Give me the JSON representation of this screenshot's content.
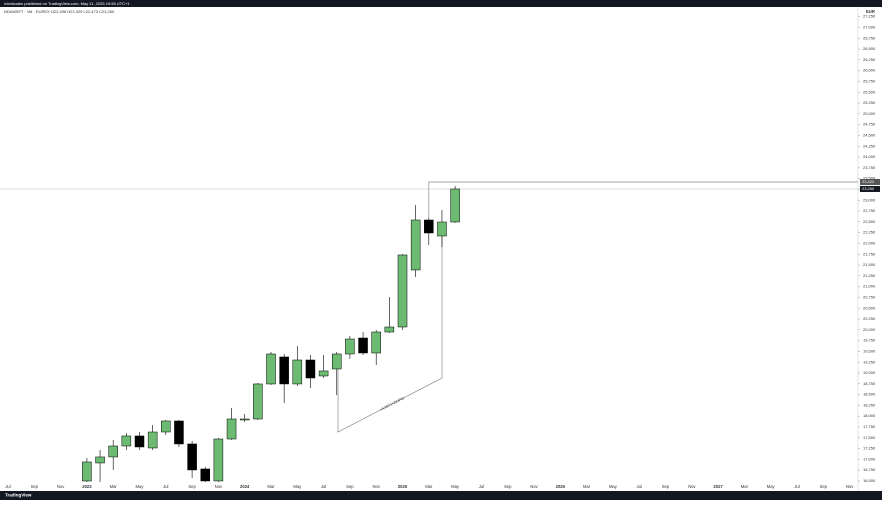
{
  "header": {
    "published": "lchristodes published on TradingView.com, May 11, 2025 19:55 UTC+1",
    "symbol_line": "NDAMSFT · 1M · EUREX   O22,496  H23,329  L22,473  C23,260"
  },
  "chart_data": {
    "type": "candlestick",
    "currency": "EUR",
    "up_color": "#6dbb72",
    "down_color": "#000000",
    "open": [
      16500,
      16917,
      17056,
      17310,
      17542,
      17264,
      17634,
      17889,
      17357,
      16778,
      16500,
      17472,
      17912,
      17935,
      18746,
      19371,
      18746,
      19301,
      18931,
      19093,
      19440,
      19810,
      19463,
      19949,
      20065,
      21385,
      22542,
      22172,
      22496
    ],
    "high": [
      17032,
      17218,
      17449,
      17611,
      17634,
      17796,
      17912,
      17912,
      17426,
      16824,
      17495,
      18190,
      18051,
      18769,
      19486,
      19440,
      19625,
      19417,
      19417,
      19486,
      19857,
      19949,
      19995,
      20760,
      21755,
      22889,
      22588,
      22774,
      23329
    ],
    "low": [
      16477,
      16477,
      16755,
      17218,
      17218,
      17218,
      17565,
      17287,
      16569,
      16477,
      16477,
      17449,
      17866,
      17912,
      18722,
      18306,
      18699,
      18653,
      18884,
      18491,
      19324,
      19417,
      19185,
      19926,
      19995,
      21223,
      21963,
      21917,
      22473
    ],
    "close": [
      16940,
      17056,
      17310,
      17542,
      17287,
      17634,
      17889,
      17357,
      16755,
      16500,
      17472,
      17935,
      17935,
      18746,
      19440,
      18746,
      19301,
      18884,
      19047,
      19440,
      19787,
      19463,
      19949,
      20065,
      21732,
      22542,
      22241,
      22496,
      23260
    ],
    "ylim": [
      16430,
      27450
    ],
    "yticks": [
      {
        "value": 16500,
        "label": "16,500"
      },
      {
        "value": 16750,
        "label": "16,750"
      },
      {
        "value": 17000,
        "label": "17,000"
      },
      {
        "value": 17250,
        "label": "17,250"
      },
      {
        "value": 17500,
        "label": "17,500"
      },
      {
        "value": 17750,
        "label": "17,750"
      },
      {
        "value": 18000,
        "label": "18,000"
      },
      {
        "value": 18250,
        "label": "18,250"
      },
      {
        "value": 18500,
        "label": "18,500"
      },
      {
        "value": 18750,
        "label": "18,750"
      },
      {
        "value": 19000,
        "label": "19,000"
      },
      {
        "value": 19250,
        "label": "19,250"
      },
      {
        "value": 19500,
        "label": "19,500"
      },
      {
        "value": 19750,
        "label": "19,750"
      },
      {
        "value": 20000,
        "label": "20,000"
      },
      {
        "value": 20250,
        "label": "20,250"
      },
      {
        "value": 20500,
        "label": "20,500"
      },
      {
        "value": 20750,
        "label": "20,750"
      },
      {
        "value": 21000,
        "label": "21,000"
      },
      {
        "value": 21250,
        "label": "21,250"
      },
      {
        "value": 21500,
        "label": "21,500"
      },
      {
        "value": 21750,
        "label": "21,750"
      },
      {
        "value": 22000,
        "label": "22,000"
      },
      {
        "value": 22250,
        "label": "22,250"
      },
      {
        "value": 22500,
        "label": "22,500"
      },
      {
        "value": 22750,
        "label": "22,750"
      },
      {
        "value": 23000,
        "label": "23,000"
      },
      {
        "value": 23250,
        "label": "23,250"
      },
      {
        "value": 23500,
        "label": "23,500"
      },
      {
        "value": 23750,
        "label": "23,750"
      },
      {
        "value": 24000,
        "label": "24,000"
      },
      {
        "value": 24250,
        "label": "24,250"
      },
      {
        "value": 24500,
        "label": "24,500"
      },
      {
        "value": 24750,
        "label": "24,750"
      },
      {
        "value": 25000,
        "label": "25,000"
      },
      {
        "value": 25250,
        "label": "25,250"
      },
      {
        "value": 25500,
        "label": "25,500"
      },
      {
        "value": 25750,
        "label": "25,750"
      },
      {
        "value": 26000,
        "label": "26,000"
      },
      {
        "value": 26250,
        "label": "26,250"
      },
      {
        "value": 26500,
        "label": "26,500"
      },
      {
        "value": 26750,
        "label": "26,750"
      },
      {
        "value": 27000,
        "label": "27,000"
      },
      {
        "value": 27250,
        "label": "27,250"
      }
    ],
    "xticks": [
      "Jul",
      "Sep",
      "Nov",
      "2023",
      "Mar",
      "May",
      "Jul",
      "Sep",
      "Nov",
      "2024",
      "Mar",
      "May",
      "Jul",
      "Sep",
      "Nov",
      "2025",
      "Mar",
      "May",
      "Jul",
      "Sep",
      "Nov",
      "2026",
      "Mar",
      "May",
      "Jul",
      "Sep",
      "Nov",
      "2027",
      "Mar",
      "May",
      "Jul",
      "Sep",
      "Nov"
    ],
    "level": {
      "value": 23422,
      "label": "23,422"
    },
    "last_price": {
      "value": 23260,
      "label": "23,260"
    },
    "annotation": "+4,167 (+23.6%)"
  },
  "footer": {
    "brand": "TradingView"
  }
}
